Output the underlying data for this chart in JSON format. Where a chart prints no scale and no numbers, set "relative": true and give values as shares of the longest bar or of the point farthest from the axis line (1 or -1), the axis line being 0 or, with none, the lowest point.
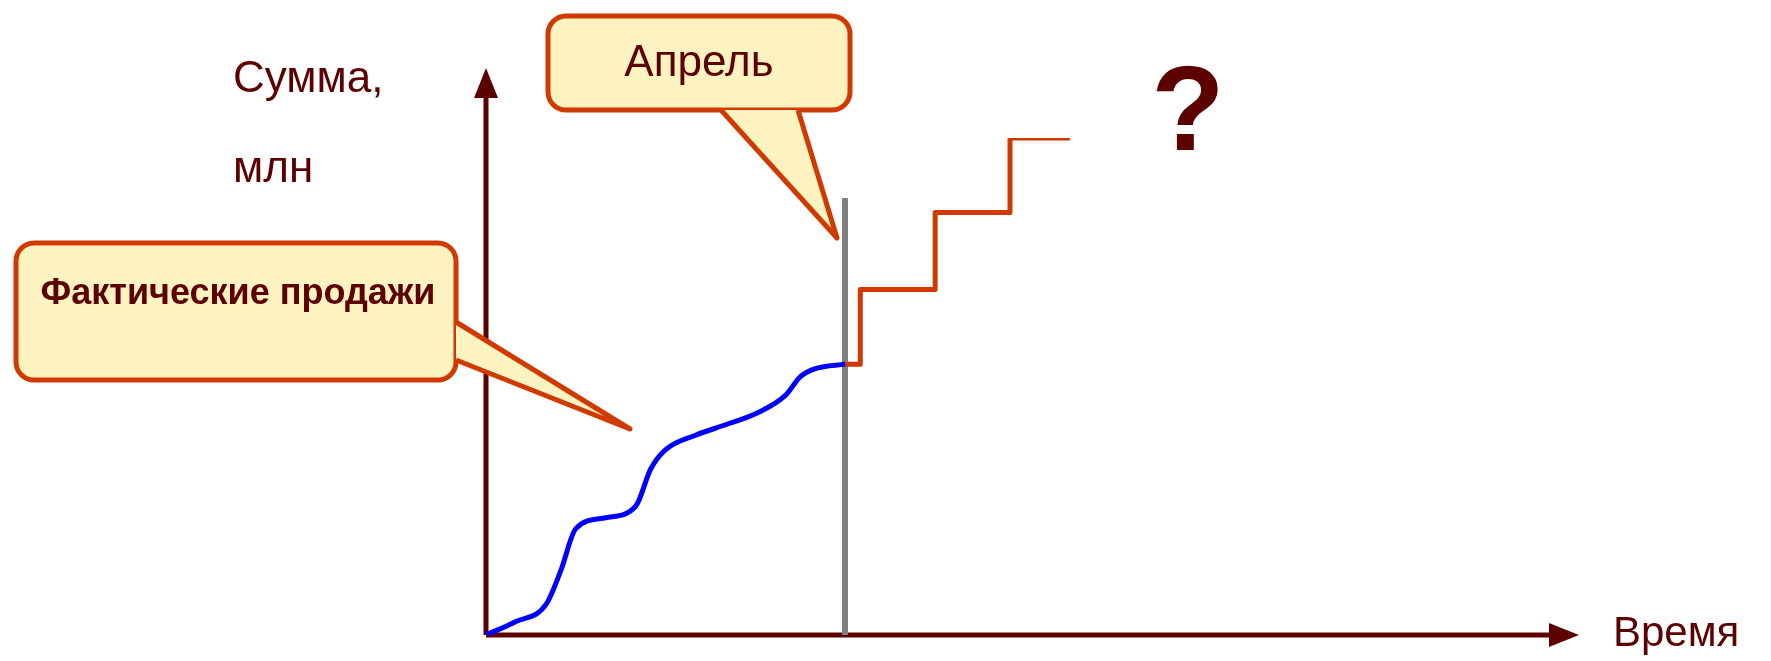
{
  "chart_data": {
    "type": "line",
    "relative": true,
    "xlabel": "Время",
    "ylabel": "Сумма, млн",
    "categories": [
      null,
      null,
      null,
      null,
      null,
      null,
      null,
      null,
      null,
      null,
      null,
      null,
      null,
      null,
      null,
      null,
      null,
      null,
      null,
      null,
      null,
      null,
      null,
      null,
      null,
      null,
      null,
      null,
      null,
      null,
      null,
      null,
      null,
      null,
      null,
      null,
      null,
      null,
      null,
      null,
      null,
      null,
      null,
      null,
      null,
      null,
      null,
      null,
      null,
      null,
      null,
      null,
      null,
      null,
      null,
      null,
      null,
      null,
      null,
      null,
      null,
      null,
      null,
      null,
      null,
      null,
      null,
      null,
      null,
      null,
      null,
      null
    ],
    "series": [
      {
        "color": "#0000ff",
        "values": [
          0,
          null,
          0.027,
          null,
          0.061,
          0.13,
          0.214,
          null,
          0.236,
          null,
          0.259,
          0.334,
          0.373,
          null,
          0.402,
          null,
          0.423,
          null,
          0.445,
          null,
          0.482,
          0.52,
          0.536,
          null,
          0.545,
          null,
          null,
          null,
          null,
          null,
          null,
          null,
          null,
          null,
          null,
          null,
          null,
          null,
          null,
          null,
          null,
          null,
          null,
          null,
          null,
          null,
          null,
          null,
          null,
          null,
          null,
          null,
          null,
          null,
          null,
          null,
          null,
          null,
          null,
          null,
          null,
          null,
          null,
          null,
          null,
          null,
          null,
          null,
          null,
          null,
          null,
          null
        ]
      },
      {
        "type": "step",
        "color": "#d03a00",
        "values": [
          null,
          null,
          null,
          null,
          null,
          null,
          null,
          null,
          null,
          null,
          null,
          null,
          null,
          null,
          null,
          null,
          null,
          null,
          null,
          null,
          null,
          null,
          null,
          null,
          0.545,
          0.695,
          0.695,
          0.695,
          0.695,
          0.695,
          0.85,
          0.85,
          0.85,
          0.85,
          0.85,
          1,
          1,
          1,
          1,
          1,
          null,
          null,
          null,
          null,
          null,
          null,
          null,
          null,
          null,
          null,
          null,
          null,
          null,
          null,
          null,
          null,
          null,
          null,
          null,
          null,
          null,
          null,
          null,
          null,
          null,
          null,
          null,
          null,
          null,
          null,
          null,
          null
        ]
      }
    ],
    "annotations": [
      "Фактические продажи",
      "Апрель",
      "?"
    ]
  }
}
